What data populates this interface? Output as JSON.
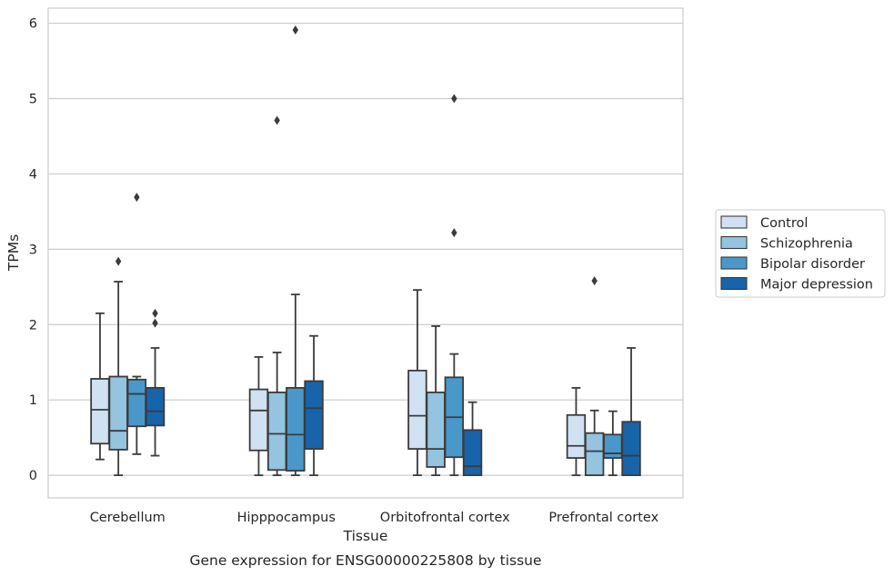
{
  "chart_data": {
    "type": "box",
    "caption": "Gene expression for ENSG00000225808 by tissue",
    "xlabel": "Tissue",
    "ylabel": "TPMs",
    "ylim": [
      -0.3,
      6.2
    ],
    "yticks": [
      0,
      1,
      2,
      3,
      4,
      5,
      6
    ],
    "grid": "horizontal",
    "legend_position": "right",
    "categories": [
      "Cerebellum",
      "Hipppocampus",
      "Orbitofrontal cortex",
      "Prefrontal cortex"
    ],
    "series": [
      {
        "name": "Control",
        "color": "#d0e1f2",
        "boxes": [
          {
            "whisker_low": 0.21,
            "q1": 0.42,
            "median": 0.87,
            "q3": 1.28,
            "whisker_high": 2.15,
            "outliers": []
          },
          {
            "whisker_low": 0.0,
            "q1": 0.33,
            "median": 0.86,
            "q3": 1.14,
            "whisker_high": 1.57,
            "outliers": []
          },
          {
            "whisker_low": 0.0,
            "q1": 0.35,
            "median": 0.79,
            "q3": 1.39,
            "whisker_high": 2.46,
            "outliers": []
          },
          {
            "whisker_low": 0.0,
            "q1": 0.23,
            "median": 0.39,
            "q3": 0.8,
            "whisker_high": 1.16,
            "outliers": []
          }
        ]
      },
      {
        "name": "Schizophrenia",
        "color": "#94c4df",
        "boxes": [
          {
            "whisker_low": 0.0,
            "q1": 0.34,
            "median": 0.59,
            "q3": 1.31,
            "whisker_high": 2.57,
            "outliers": [
              2.84
            ]
          },
          {
            "whisker_low": 0.0,
            "q1": 0.07,
            "median": 0.55,
            "q3": 1.1,
            "whisker_high": 1.63,
            "outliers": [
              4.71
            ]
          },
          {
            "whisker_low": 0.0,
            "q1": 0.11,
            "median": 0.35,
            "q3": 1.1,
            "whisker_high": 1.98,
            "outliers": []
          },
          {
            "whisker_low": 0.0,
            "q1": 0.0,
            "median": 0.32,
            "q3": 0.56,
            "whisker_high": 0.86,
            "outliers": [
              2.58
            ]
          }
        ]
      },
      {
        "name": "Bipolar disorder",
        "color": "#4a98c9",
        "boxes": [
          {
            "whisker_low": 0.28,
            "q1": 0.65,
            "median": 1.08,
            "q3": 1.27,
            "whisker_high": 1.31,
            "outliers": [
              3.69
            ]
          },
          {
            "whisker_low": 0.0,
            "q1": 0.06,
            "median": 0.54,
            "q3": 1.16,
            "whisker_high": 2.4,
            "outliers": [
              5.91
            ]
          },
          {
            "whisker_low": 0.0,
            "q1": 0.24,
            "median": 0.77,
            "q3": 1.3,
            "whisker_high": 1.61,
            "outliers": [
              3.22,
              5.0
            ]
          },
          {
            "whisker_low": 0.0,
            "q1": 0.23,
            "median": 0.29,
            "q3": 0.54,
            "whisker_high": 0.85,
            "outliers": []
          }
        ]
      },
      {
        "name": "Major depression",
        "color": "#1764ab",
        "boxes": [
          {
            "whisker_low": 0.26,
            "q1": 0.66,
            "median": 0.85,
            "q3": 1.16,
            "whisker_high": 1.69,
            "outliers": [
              2.02,
              2.15
            ]
          },
          {
            "whisker_low": 0.0,
            "q1": 0.35,
            "median": 0.89,
            "q3": 1.25,
            "whisker_high": 1.85,
            "outliers": []
          },
          {
            "whisker_low": 0.0,
            "q1": 0.0,
            "median": 0.12,
            "q3": 0.6,
            "whisker_high": 0.97,
            "outliers": []
          },
          {
            "whisker_low": 0.0,
            "q1": 0.0,
            "median": 0.26,
            "q3": 0.71,
            "whisker_high": 1.69,
            "outliers": []
          }
        ]
      }
    ]
  }
}
